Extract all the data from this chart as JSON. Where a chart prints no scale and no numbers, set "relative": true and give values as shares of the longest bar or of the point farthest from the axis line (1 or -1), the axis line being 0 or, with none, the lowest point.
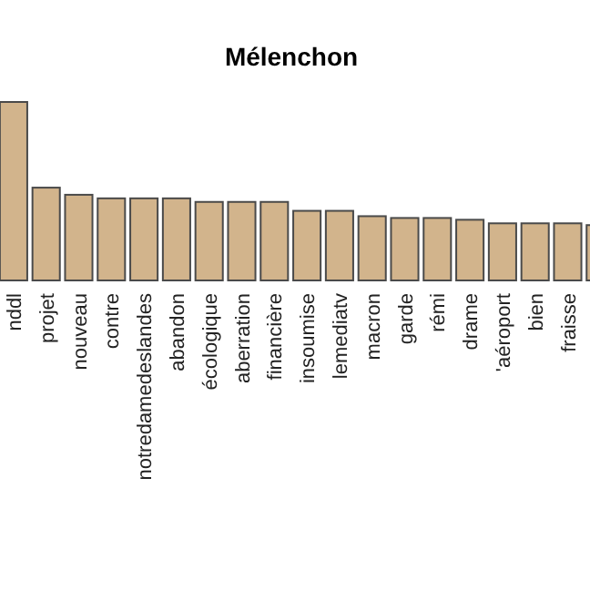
{
  "chart_data": {
    "type": "bar",
    "title": "Mélenchon",
    "relative": true,
    "categories": [
      "nddl",
      "projet",
      "nouveau",
      "contre",
      "notredamedeslandes",
      "abandon",
      "écologique",
      "aberration",
      "financière",
      "insoumise",
      "lemediatv",
      "macron",
      "garde",
      "rémi",
      "drame",
      "'aéroport",
      "bien",
      "fraisse",
      null
    ],
    "values": [
      1,
      0.52,
      0.48,
      0.46,
      0.46,
      0.46,
      0.44,
      0.44,
      0.44,
      0.39,
      0.39,
      0.36,
      0.35,
      0.35,
      0.34,
      0.32,
      0.32,
      0.32,
      0.31
    ],
    "color": "#d2b48c"
  }
}
